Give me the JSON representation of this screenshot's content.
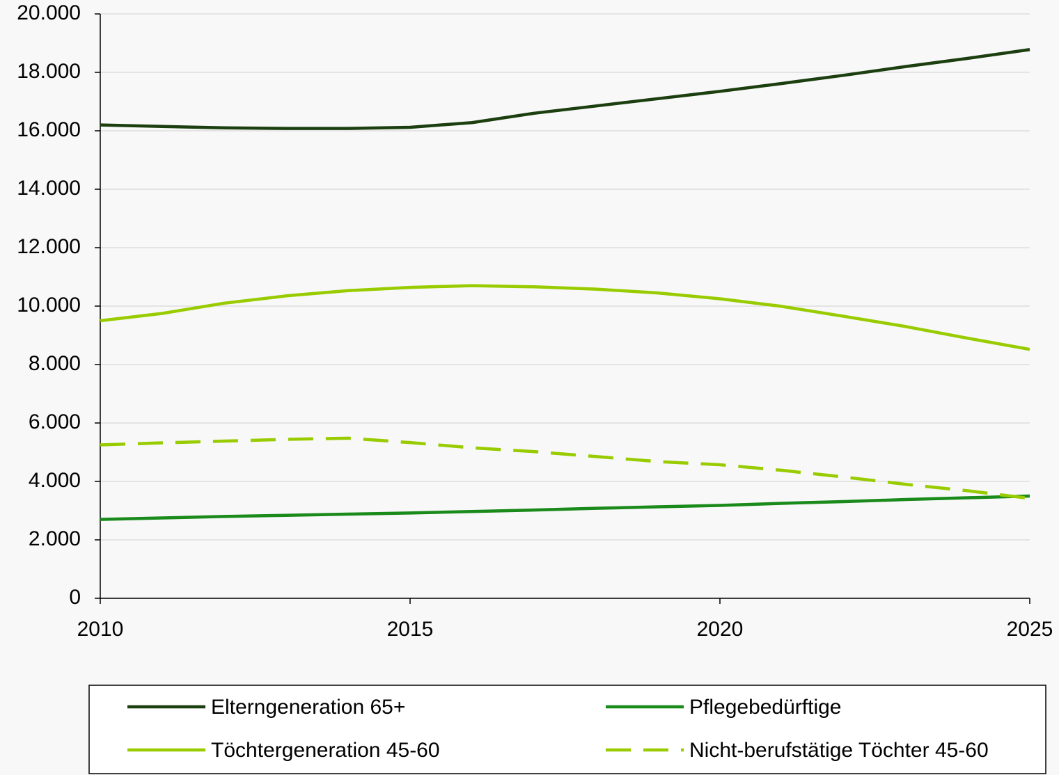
{
  "chart_data": {
    "type": "line",
    "x": [
      2010,
      2011,
      2012,
      2013,
      2014,
      2015,
      2016,
      2017,
      2018,
      2019,
      2020,
      2021,
      2022,
      2023,
      2024,
      2025
    ],
    "series": [
      {
        "name": "Elterngeneration 65+",
        "color": "#1c3f10",
        "dashed": false,
        "values": [
          16200,
          16150,
          16100,
          16080,
          16080,
          16120,
          16280,
          16600,
          16850,
          17100,
          17350,
          17620,
          17900,
          18200,
          18480,
          18780
        ]
      },
      {
        "name": "Pflegebedürftige",
        "color": "#1a8a1a",
        "dashed": false,
        "values": [
          2700,
          2750,
          2800,
          2840,
          2880,
          2920,
          2970,
          3020,
          3080,
          3130,
          3180,
          3250,
          3310,
          3380,
          3440,
          3500
        ]
      },
      {
        "name": "Töchtergeneration 45-60",
        "color": "#99cc00",
        "dashed": false,
        "values": [
          9500,
          9750,
          10100,
          10350,
          10530,
          10640,
          10700,
          10660,
          10580,
          10450,
          10250,
          9990,
          9650,
          9300,
          8900,
          8520
        ]
      },
      {
        "name": "Nicht-berufstätige Töchter 45-60",
        "color": "#99cc00",
        "dashed": true,
        "values": [
          5250,
          5320,
          5380,
          5440,
          5480,
          5330,
          5150,
          5020,
          4850,
          4680,
          4570,
          4380,
          4150,
          3900,
          3680,
          3420
        ]
      }
    ],
    "xlim": [
      2010,
      2025
    ],
    "xticks": [
      2010,
      2015,
      2020,
      2025
    ],
    "ylim": [
      0,
      20000
    ],
    "yticks": [
      0,
      {
        "value": 2000,
        "label": "2.000"
      },
      {
        "value": 4000,
        "label": "4.000"
      },
      {
        "value": 6000,
        "label": "6.000"
      },
      {
        "value": 8000,
        "label": "8.000"
      },
      {
        "value": 10000,
        "label": "10.000"
      },
      {
        "value": 12000,
        "label": "12.000"
      },
      {
        "value": 14000,
        "label": "14.000"
      },
      {
        "value": 16000,
        "label": "16.000"
      },
      {
        "value": 18000,
        "label": "18.000"
      },
      {
        "value": 20000,
        "label": "20.000"
      }
    ],
    "grid": true,
    "legend": "bottom"
  }
}
